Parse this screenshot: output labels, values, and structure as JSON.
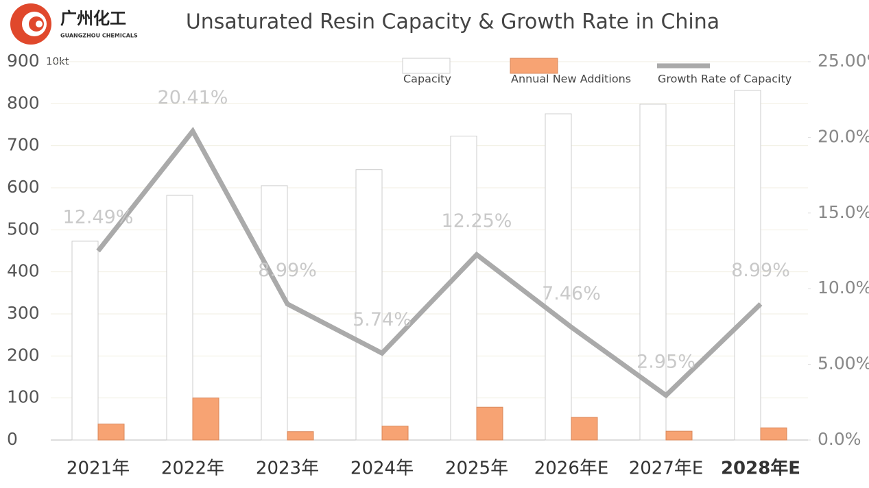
{
  "header": {
    "logo_name": "广州化工",
    "logo_subtitle": "GUANGZHOU CHEMICALS"
  },
  "chart_data": {
    "type": "bar",
    "title": "Unsaturated Resin Capacity & Growth Rate in China",
    "y_unit": "10kt",
    "categories": [
      "2021年",
      "2022年",
      "2023年",
      "2024年",
      "2025年",
      "2026年E",
      "2027年E",
      "2028年E"
    ],
    "series": [
      {
        "name": "Capacity",
        "color": "#ffffff",
        "values": [
          473,
          582,
          605,
          643,
          723,
          776,
          799,
          832
        ]
      },
      {
        "name": "Annual New Additions",
        "color": "#f7a373",
        "values": [
          38,
          100,
          20,
          33,
          78,
          54,
          21,
          29
        ]
      },
      {
        "name": "Growth Rate of Capacity",
        "type": "line",
        "axis": "y2",
        "color": "#aaaaaa",
        "values": [
          12.49,
          20.41,
          8.99,
          5.74,
          12.25,
          7.46,
          2.95,
          8.99
        ],
        "value_labels": [
          "12.49%",
          "20.41%",
          "8.99%",
          "5.74%",
          "12.25%",
          "7.46%",
          "2.95%",
          "8.99%"
        ]
      }
    ],
    "ylim": [
      0,
      900
    ],
    "yticks": [
      0,
      100,
      200,
      300,
      400,
      500,
      600,
      700,
      800,
      900
    ],
    "y2lim": [
      0,
      25
    ],
    "y2ticks": [
      {
        "value": 0,
        "label": "0.0%"
      },
      {
        "value": 5,
        "label": "5.00%"
      },
      {
        "value": 10,
        "label": "10.0%"
      },
      {
        "value": 15,
        "label": "15.0%"
      },
      {
        "value": 20,
        "label": "20.0%"
      },
      {
        "value": 25,
        "label": "25.00%"
      }
    ],
    "grid": true
  }
}
